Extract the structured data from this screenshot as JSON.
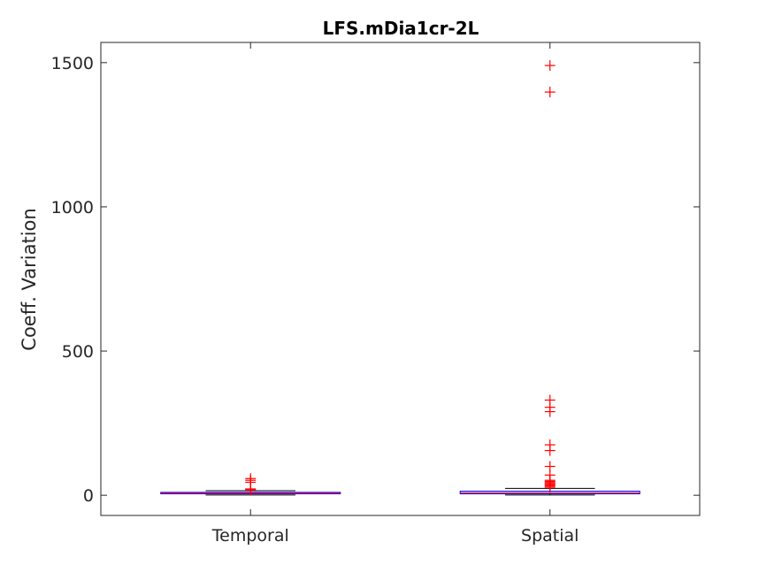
{
  "chart_data": {
    "type": "box",
    "title": "LFS.mDia1cr-2L",
    "xlabel": "",
    "ylabel": "Coeff. Variation",
    "categories": [
      "Temporal",
      "Spatial"
    ],
    "ylim": [
      -70,
      1570
    ],
    "yticks": [
      0,
      500,
      1000,
      1500
    ],
    "grid": false,
    "boxes": [
      {
        "category": "Temporal",
        "whisker_low": 1,
        "q1": 5,
        "median": 7,
        "q3": 10,
        "whisker_high": 16,
        "outliers": [
          18,
          20,
          22,
          45,
          52,
          58
        ]
      },
      {
        "category": "Spatial",
        "whisker_low": 1,
        "q1": 5,
        "median": 9,
        "q3": 14,
        "whisker_high": 24,
        "outliers": [
          28,
          32,
          36,
          40,
          44,
          48,
          52,
          70,
          100,
          155,
          175,
          290,
          305,
          330,
          1398,
          1490
        ]
      }
    ],
    "colors": {
      "box": "#0000ff",
      "median": "#ff0000",
      "whisker": "#000000",
      "outlier": "#ff0000",
      "axes": "#262626",
      "background": "#ffffff"
    }
  }
}
